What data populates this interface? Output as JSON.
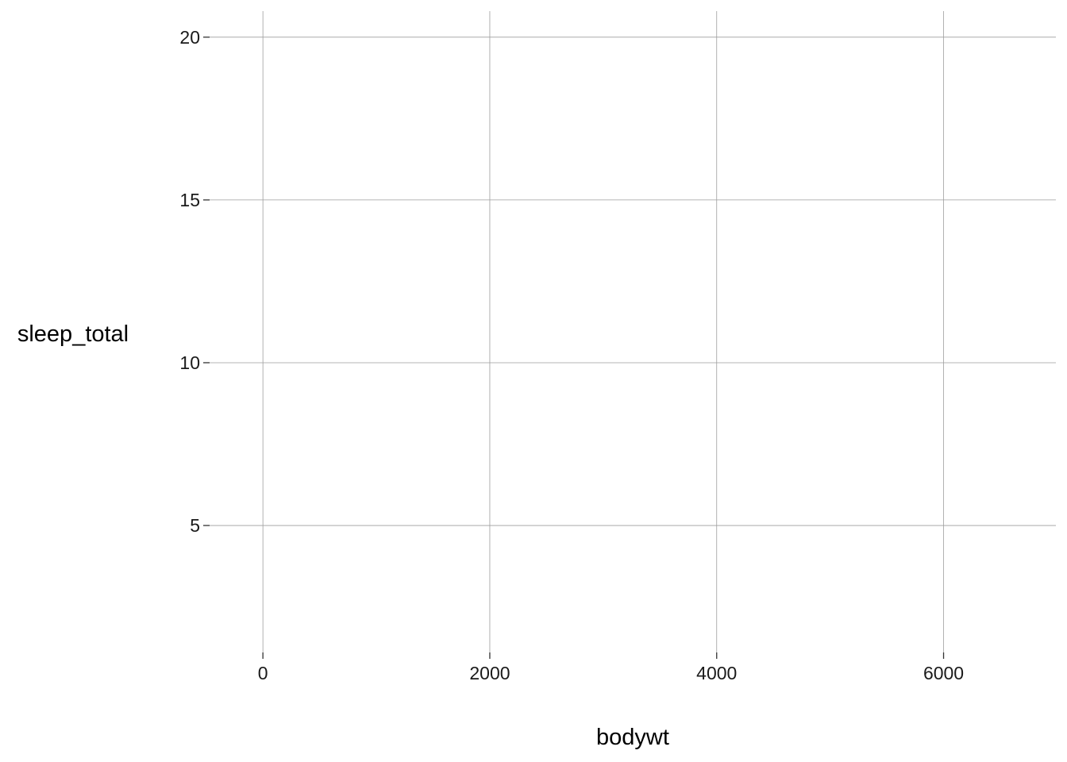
{
  "chart_data": {
    "type": "scatter",
    "title": "",
    "xlabel": "bodywt",
    "ylabel": "sleep_total",
    "xlim": [
      -470,
      6990
    ],
    "ylim": [
      1.1,
      20.8
    ],
    "x_ticks": [
      0,
      2000,
      4000,
      6000
    ],
    "y_ticks": [
      5,
      10,
      15,
      20
    ],
    "x_tick_labels": [
      "0",
      "2000",
      "4000",
      "6000"
    ],
    "y_tick_labels": [
      "5",
      "10",
      "15",
      "20"
    ],
    "grid": true,
    "legend": "none",
    "points": [],
    "colors": {
      "grid": "#9e9e9e",
      "text": "#1a1a1a",
      "background": "#ffffff"
    }
  }
}
